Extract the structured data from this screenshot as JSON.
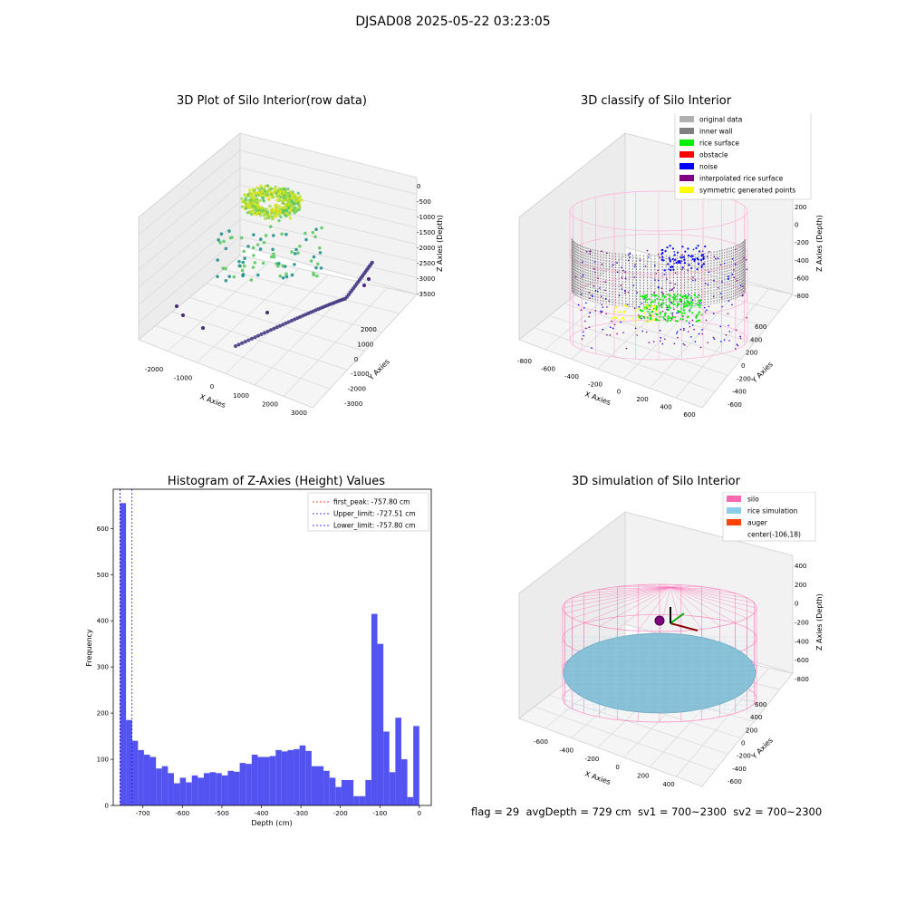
{
  "suptitle": "DJSAD08 2025-05-22 03:23:05",
  "status_line": "flag = 29  avgDepth = 729 cm  sv1 = 700~2300  sv2 = 700~2300",
  "chart_data": [
    {
      "type": "scatter",
      "projection": "3d",
      "title": "3D Plot of Silo Interior(row data)",
      "xlabel": "X Axies",
      "ylabel": "Y Axies",
      "zlabel": "Z Axies (Depth)",
      "x_ticks": [
        "-2000",
        "-1000",
        "0",
        "1000",
        "2000",
        "3000"
      ],
      "y_ticks": [
        "2000",
        "1000",
        "0",
        "-1000",
        "-2000",
        "-3000"
      ],
      "z_ticks": [
        "0",
        "-500",
        "-1000",
        "-1500",
        "-2000",
        "-2500",
        "-3000",
        "-3500"
      ],
      "xlim": [
        -2500,
        3300
      ],
      "ylim": [
        -3300,
        2500
      ],
      "zlim": [
        -3800,
        200
      ],
      "colormap": "viridis",
      "grid": true
    },
    {
      "type": "scatter",
      "projection": "3d",
      "title": "3D classify of Silo Interior",
      "xlabel": "X Axies",
      "ylabel": "Y Axies",
      "zlabel": "Z Axies (Depth)",
      "x_ticks": [
        "-800",
        "-600",
        "-400",
        "-200",
        "0",
        "200",
        "400",
        "600"
      ],
      "y_ticks": [
        "600",
        "400",
        "200",
        "0",
        "-200",
        "-400",
        "-600"
      ],
      "z_ticks": [
        "200",
        "0",
        "-200",
        "-400",
        "-600",
        "-800"
      ],
      "legend_placement": "upper-right",
      "legend": [
        {
          "label": "original data",
          "color": "#b0b0b0"
        },
        {
          "label": "inner wall",
          "color": "#808080"
        },
        {
          "label": "rice surface",
          "color": "#00ee00"
        },
        {
          "label": "obstacle",
          "color": "#ff0000"
        },
        {
          "label": "noise",
          "color": "#0000ff"
        },
        {
          "label": "interpolated rice surface",
          "color": "#800080"
        },
        {
          "label": "symmetric generated points",
          "color": "#ffff00"
        }
      ],
      "grid": true
    },
    {
      "type": "bar",
      "title": "Histogram of Z-Axies (Height) Values",
      "xlabel": "Depth (cm)",
      "ylabel": "Frequency",
      "bar_color": "#4a4af0",
      "xlim": [
        -775,
        30
      ],
      "ylim": [
        0,
        685
      ],
      "x_ticks": [
        -700,
        -600,
        -500,
        -400,
        -300,
        -200,
        -100,
        0
      ],
      "y_ticks": [
        0,
        100,
        200,
        300,
        400,
        500,
        600
      ],
      "bin_start": -757.8,
      "bin_width": 15.15,
      "values": [
        655,
        185,
        140,
        120,
        110,
        105,
        80,
        85,
        70,
        48,
        60,
        50,
        65,
        60,
        70,
        72,
        70,
        65,
        75,
        73,
        92,
        90,
        110,
        105,
        105,
        107,
        120,
        117,
        120,
        122,
        130,
        118,
        85,
        85,
        75,
        60,
        40,
        55,
        55,
        20,
        20,
        55,
        415,
        350,
        160,
        72,
        190,
        100,
        18,
        172
      ],
      "reference_lines": [
        {
          "label": "first_peak: -757.80 cm",
          "value": -757.8,
          "color": "#ff0000"
        },
        {
          "label": "Upper_limit: -727.51 cm",
          "value": -727.51,
          "color": "#0000ff"
        },
        {
          "label": "Lower_limit: -757.80 cm",
          "value": -757.8,
          "color": "#0000ff"
        }
      ],
      "legend_placement": "upper-right",
      "grid": false
    },
    {
      "type": "surface",
      "projection": "3d",
      "title": "3D simulation of Silo Interior",
      "xlabel": "X Axies",
      "ylabel": "Y Axies",
      "zlabel": "Z Axies (Depth)",
      "x_ticks": [
        "-600",
        "-400",
        "-200",
        "0",
        "200",
        "400"
      ],
      "y_ticks": [
        "600",
        "400",
        "200",
        "0",
        "-200",
        "-400",
        "-600"
      ],
      "z_ticks": [
        "400",
        "200",
        "0",
        "-200",
        "-400",
        "-600",
        "-800"
      ],
      "legend_placement": "upper-right",
      "legend": [
        {
          "label": "silo",
          "color": "#ff69b4"
        },
        {
          "label": "rice simulation",
          "color": "#87ceeb"
        },
        {
          "label": "auger",
          "color": "#ff4500"
        },
        {
          "label": "center(-106,18)",
          "color": ""
        }
      ],
      "grid": true
    }
  ]
}
